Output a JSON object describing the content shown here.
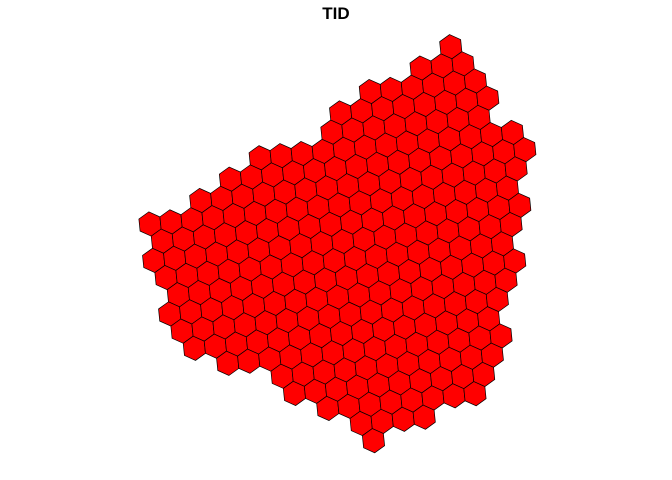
{
  "map": {
    "title": "TID",
    "fill_color": "#ff0000",
    "border_color": "#000000",
    "cell_shape": "hexagon",
    "legend": "none"
  }
}
